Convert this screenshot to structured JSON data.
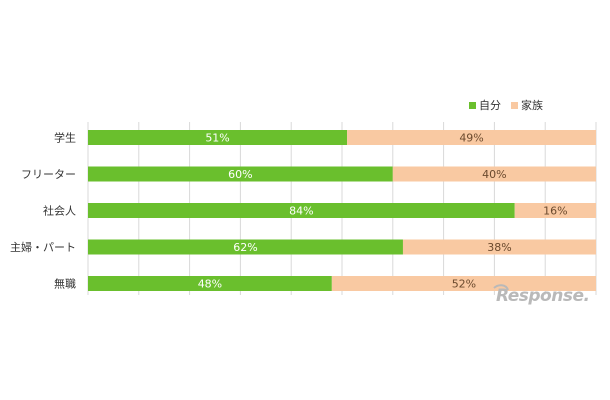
{
  "chart_data": {
    "type": "bar",
    "orientation": "horizontal",
    "stacked": true,
    "categories": [
      "学生",
      "フリーター",
      "社会人",
      "主婦・パート",
      "無職"
    ],
    "series": [
      {
        "name": "自分",
        "values": [
          51,
          60,
          84,
          62,
          48
        ],
        "labels": [
          "51%",
          "60%",
          "84%",
          "62%",
          "48%"
        ],
        "color": "#6abf2d"
      },
      {
        "name": "家族",
        "values": [
          49,
          40,
          16,
          38,
          52
        ],
        "labels": [
          "49%",
          "40%",
          "16%",
          "38%",
          "52%"
        ],
        "color": "#f9c9a2"
      }
    ],
    "xlim": [
      0,
      100
    ],
    "grid": true,
    "legend_position": "top-right"
  },
  "colors": {
    "self_label": "#ffffff",
    "family_label": "#6b4a2e",
    "grid": "#d9d9d9",
    "watermark": "#b9b9b9"
  },
  "watermark": {
    "text": "Response."
  }
}
